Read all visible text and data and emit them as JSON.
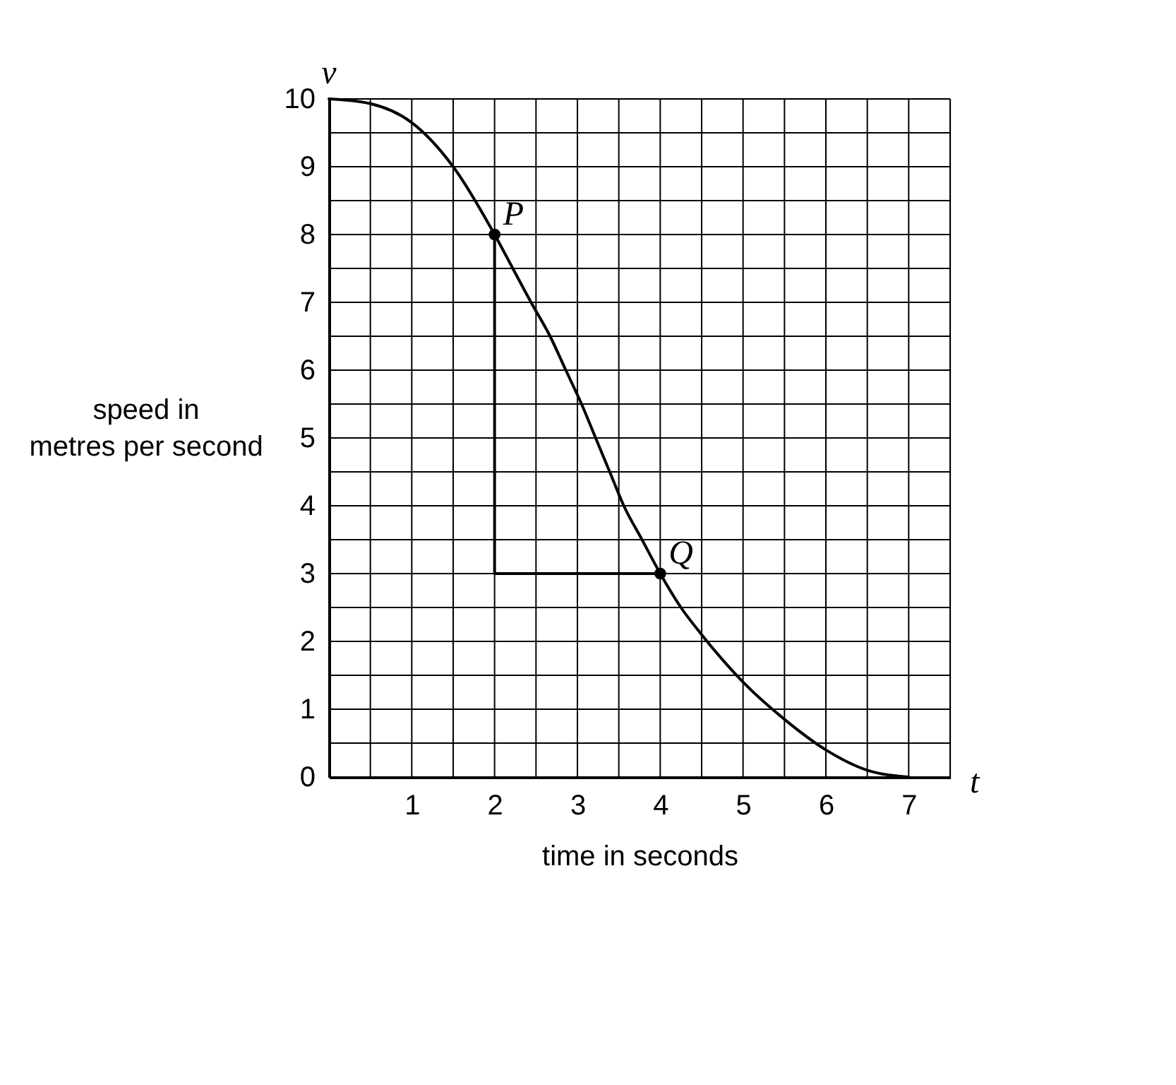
{
  "chart_data": {
    "type": "line",
    "xlabel": "time in seconds",
    "ylabel": "speed in metres per second",
    "xlim": [
      0,
      7.5
    ],
    "ylim": [
      0,
      10
    ],
    "xticks": [
      {
        "value": 0,
        "label": null
      },
      {
        "value": 0.5,
        "label": null
      },
      1,
      {
        "value": 1.5,
        "label": null
      },
      2,
      {
        "value": 2.5,
        "label": null
      },
      3,
      {
        "value": 3.5,
        "label": null
      },
      4,
      {
        "value": 4.5,
        "label": null
      },
      5,
      {
        "value": 5.5,
        "label": null
      },
      6,
      {
        "value": 6.5,
        "label": null
      },
      7,
      {
        "value": 7.5,
        "label": null
      }
    ],
    "yticks": [
      0,
      {
        "value": 0.5,
        "label": null
      },
      1,
      {
        "value": 1.5,
        "label": null
      },
      2,
      {
        "value": 2.5,
        "label": null
      },
      3,
      {
        "value": 3.5,
        "label": null
      },
      4,
      {
        "value": 4.5,
        "label": null
      },
      5,
      {
        "value": 5.5,
        "label": null
      },
      6,
      {
        "value": 6.5,
        "label": null
      },
      7,
      {
        "value": 7.5,
        "label": null
      },
      8,
      {
        "value": 8.5,
        "label": null
      },
      9,
      {
        "value": 9.5,
        "label": null
      },
      10
    ],
    "grid": true,
    "series": [
      {
        "type": "line",
        "color": "#000000",
        "x": [
          0,
          0.5,
          1,
          1.5,
          2,
          2.22,
          2.44,
          2.67,
          2.86,
          3.05,
          3.22,
          3.39,
          3.56,
          3.78,
          4,
          4.25,
          4.5,
          5,
          5.5,
          6,
          6.5,
          7
        ],
        "values": [
          10,
          9.93,
          9.65,
          9.0,
          8,
          7.5,
          7,
          6.5,
          6,
          5.5,
          5,
          4.5,
          4,
          3.5,
          3,
          2.5,
          2.1,
          1.4,
          0.85,
          0.4,
          0.1,
          0
        ]
      },
      {
        "type": "line",
        "color": "#000000",
        "x": [
          2,
          2,
          4
        ],
        "values": [
          8,
          3,
          3
        ]
      },
      {
        "type": "scatter",
        "color": "#000000",
        "marker": "circle",
        "x": [
          2,
          4
        ],
        "values": [
          8,
          3
        ]
      }
    ],
    "annotations": [
      "v",
      "t",
      {
        "text": "P",
        "x": 2,
        "y": 8
      },
      {
        "text": "Q",
        "x": 4,
        "y": 3
      }
    ]
  }
}
